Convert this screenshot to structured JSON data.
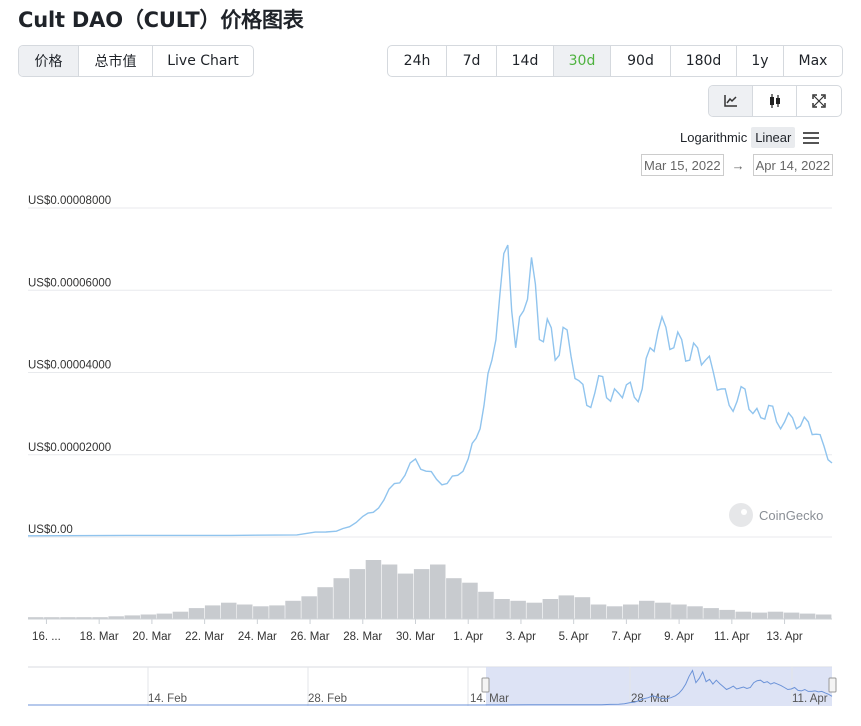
{
  "page": {
    "title": "Cult DAO（CULT）价格图表"
  },
  "tabs": [
    {
      "label": "价格",
      "active": true
    },
    {
      "label": "总市值",
      "active": false
    },
    {
      "label": "Live Chart",
      "active": false
    }
  ],
  "ranges": [
    {
      "label": "24h",
      "active": false
    },
    {
      "label": "7d",
      "active": false
    },
    {
      "label": "14d",
      "active": false
    },
    {
      "label": "30d",
      "active": true
    },
    {
      "label": "90d",
      "active": false
    },
    {
      "label": "180d",
      "active": false
    },
    {
      "label": "1y",
      "active": false
    },
    {
      "label": "Max",
      "active": false
    }
  ],
  "view_icons": [
    "line-chart-icon",
    "candlestick-icon",
    "fullscreen-icon"
  ],
  "scale": {
    "log_label": "Logarithmic",
    "linear_label": "Linear",
    "selected": "Linear"
  },
  "date_range": {
    "from": "Mar 15, 2022",
    "to": "Apr 14, 2022"
  },
  "watermark": "CoinGecko",
  "colors": {
    "accent_green": "#4eb23f",
    "line": "#90c4ee",
    "volume": "#c8cbcf",
    "navigator_fill": "#d7def3"
  },
  "chart_data": {
    "type": "line",
    "title": "",
    "xlabel": "",
    "ylabel": "",
    "y_tick_labels": [
      "US$0.00",
      "US$0.00002000",
      "US$0.00004000",
      "US$0.00006000",
      "US$0.00008000"
    ],
    "y_ticks": [
      0,
      2e-05,
      4e-05,
      6e-05,
      8e-05
    ],
    "ylim": [
      0,
      8e-05
    ],
    "x_tick_labels": [
      "16. ...",
      "18. Mar",
      "20. Mar",
      "22. Mar",
      "24. Mar",
      "26. Mar",
      "28. Mar",
      "30. Mar",
      "1. Apr",
      "3. Apr",
      "5. Apr",
      "7. Apr",
      "9. Apr",
      "11. Apr",
      "13. Apr"
    ],
    "x_ticks": [
      1,
      3,
      5,
      7,
      9,
      11,
      13,
      15,
      17,
      19,
      21,
      23,
      25,
      27,
      29
    ],
    "xlim": [
      0.3,
      30.8
    ],
    "x_unit_note": "",
    "series": [
      {
        "values_note": "",
        "x": [
          0.3,
          4,
          8,
          10.5,
          11.2,
          12,
          12.5,
          13,
          13.4,
          13.8,
          14.2,
          14.6,
          15,
          15.4,
          15.8,
          16.2,
          16.6,
          17,
          17.3,
          17.6,
          17.9,
          18.2,
          18.5,
          18.8,
          19.1,
          19.4,
          19.7,
          20,
          20.3,
          20.6,
          20.9,
          21.2,
          21.5,
          21.8,
          22.1,
          22.4,
          22.7,
          23,
          23.3,
          23.6,
          23.9,
          24.2,
          24.5,
          24.8,
          25.1,
          25.4,
          25.7,
          26,
          26.3,
          26.6,
          26.9,
          27.2,
          27.5,
          27.8,
          28.1,
          28.4,
          28.7,
          29,
          29.3,
          29.6,
          29.9,
          30.2,
          30.5,
          30.8
        ],
        "y": [
          3e-07,
          4e-07,
          4e-07,
          5e-07,
          1.2e-06,
          1.4e-06,
          2.5e-06,
          5e-06,
          6e-06,
          9e-06,
          1.3e-05,
          1.5e-05,
          1.9e-05,
          1.6e-05,
          1.4e-05,
          1.3e-05,
          1.5e-05,
          1.9e-05,
          2.4e-05,
          3.2e-05,
          4.3e-05,
          5.9e-05,
          7.1e-05,
          4.6e-05,
          5.5e-05,
          6.8e-05,
          4.8e-05,
          5.3e-05,
          4.3e-05,
          5.1e-05,
          4.4e-05,
          3.8e-05,
          3.2e-05,
          3.5e-05,
          3.9e-05,
          3.3e-05,
          3.5e-05,
          3.7e-05,
          3.4e-05,
          3.6e-05,
          4.6e-05,
          5e-05,
          5.1e-05,
          4.6e-05,
          4.8e-05,
          4.3e-05,
          4.6e-05,
          4.3e-05,
          4e-05,
          3.6e-05,
          3.2e-05,
          3.3e-05,
          3.6e-05,
          3e-05,
          2.9e-05,
          3.2e-05,
          2.8e-05,
          2.8e-05,
          2.9e-05,
          2.7e-05,
          2.8e-05,
          2.5e-05,
          2.2e-05,
          1.8e-05
        ]
      }
    ],
    "volume_note": "",
    "volume": [
      0.02,
      0.02,
      0.02,
      0.02,
      0.02,
      0.03,
      0.04,
      0.05,
      0.06,
      0.08,
      0.12,
      0.15,
      0.18,
      0.16,
      0.14,
      0.15,
      0.2,
      0.25,
      0.35,
      0.45,
      0.55,
      0.65,
      0.6,
      0.5,
      0.55,
      0.6,
      0.45,
      0.4,
      0.3,
      0.22,
      0.2,
      0.18,
      0.22,
      0.26,
      0.24,
      0.16,
      0.14,
      0.16,
      0.2,
      0.18,
      0.16,
      0.14,
      0.12,
      0.1,
      0.08,
      0.07,
      0.08,
      0.07,
      0.06,
      0.05
    ]
  },
  "navigator": {
    "tick_labels": [
      "14. Feb",
      "28. Feb",
      "14. Mar",
      "28. Mar",
      "11. Apr"
    ]
  }
}
